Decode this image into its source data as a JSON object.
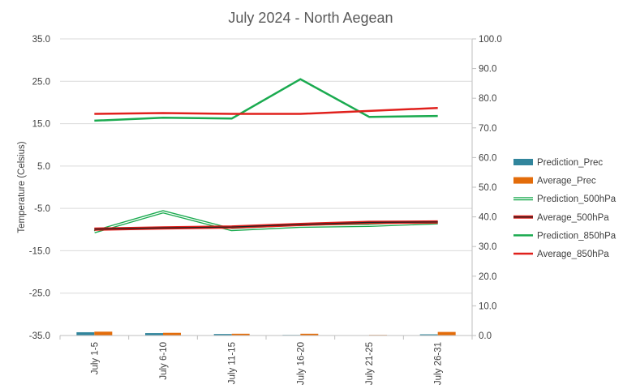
{
  "chart_data": {
    "type": "bar+line",
    "title": "July 2024 - North Aegean",
    "ylabel": "Temperature (Celsius)",
    "y2label": "",
    "categories": [
      "July 1-5",
      "July 6-10",
      "July 11-15",
      "July 16-20",
      "July 21-25",
      "July 26-31"
    ],
    "ylim": [
      -35,
      35
    ],
    "yticks": [
      "35.0",
      "25.0",
      "15.0",
      "5.0",
      "-5.0",
      "-15.0",
      "-25.0",
      "-35.0"
    ],
    "y2lim": [
      0,
      100
    ],
    "y2ticks": [
      "100.0",
      "90.0",
      "80.0",
      "70.0",
      "60.0",
      "50.0",
      "40.0",
      "30.0",
      "20.0",
      "10.0",
      "0.0"
    ],
    "legend_position": "right",
    "grid": true,
    "bar_series": [
      {
        "name": "Prediction_Prec",
        "color": "#31859c",
        "axis": "secondary",
        "values": [
          1.1,
          0.8,
          0.5,
          0.2,
          0.1,
          0.4
        ]
      },
      {
        "name": "Average_Prec",
        "color": "#e36c0a",
        "axis": "secondary",
        "values": [
          1.3,
          0.9,
          0.6,
          0.6,
          0.2,
          1.2
        ]
      }
    ],
    "line_series": [
      {
        "name": "Prediction_500hPa",
        "color": "#1aaa4f",
        "style": "double",
        "axis": "primary",
        "values": [
          -10.5,
          -5.8,
          -10.0,
          -9.2,
          -9.0,
          -8.4
        ]
      },
      {
        "name": "Average_500hPa",
        "color": "#e0201c",
        "style": "double",
        "axis": "primary",
        "values": [
          -9.9,
          -9.6,
          -9.4,
          -8.8,
          -8.3,
          -8.2
        ]
      },
      {
        "name": "Prediction_850hPa",
        "color": "#1aaa4f",
        "style": "single",
        "axis": "primary",
        "values": [
          15.7,
          16.4,
          16.2,
          25.5,
          16.6,
          16.8
        ]
      },
      {
        "name": "Average_850hPa",
        "color": "#e0201c",
        "style": "single",
        "axis": "primary",
        "values": [
          17.3,
          17.5,
          17.3,
          17.3,
          18.0,
          18.7
        ]
      }
    ]
  }
}
